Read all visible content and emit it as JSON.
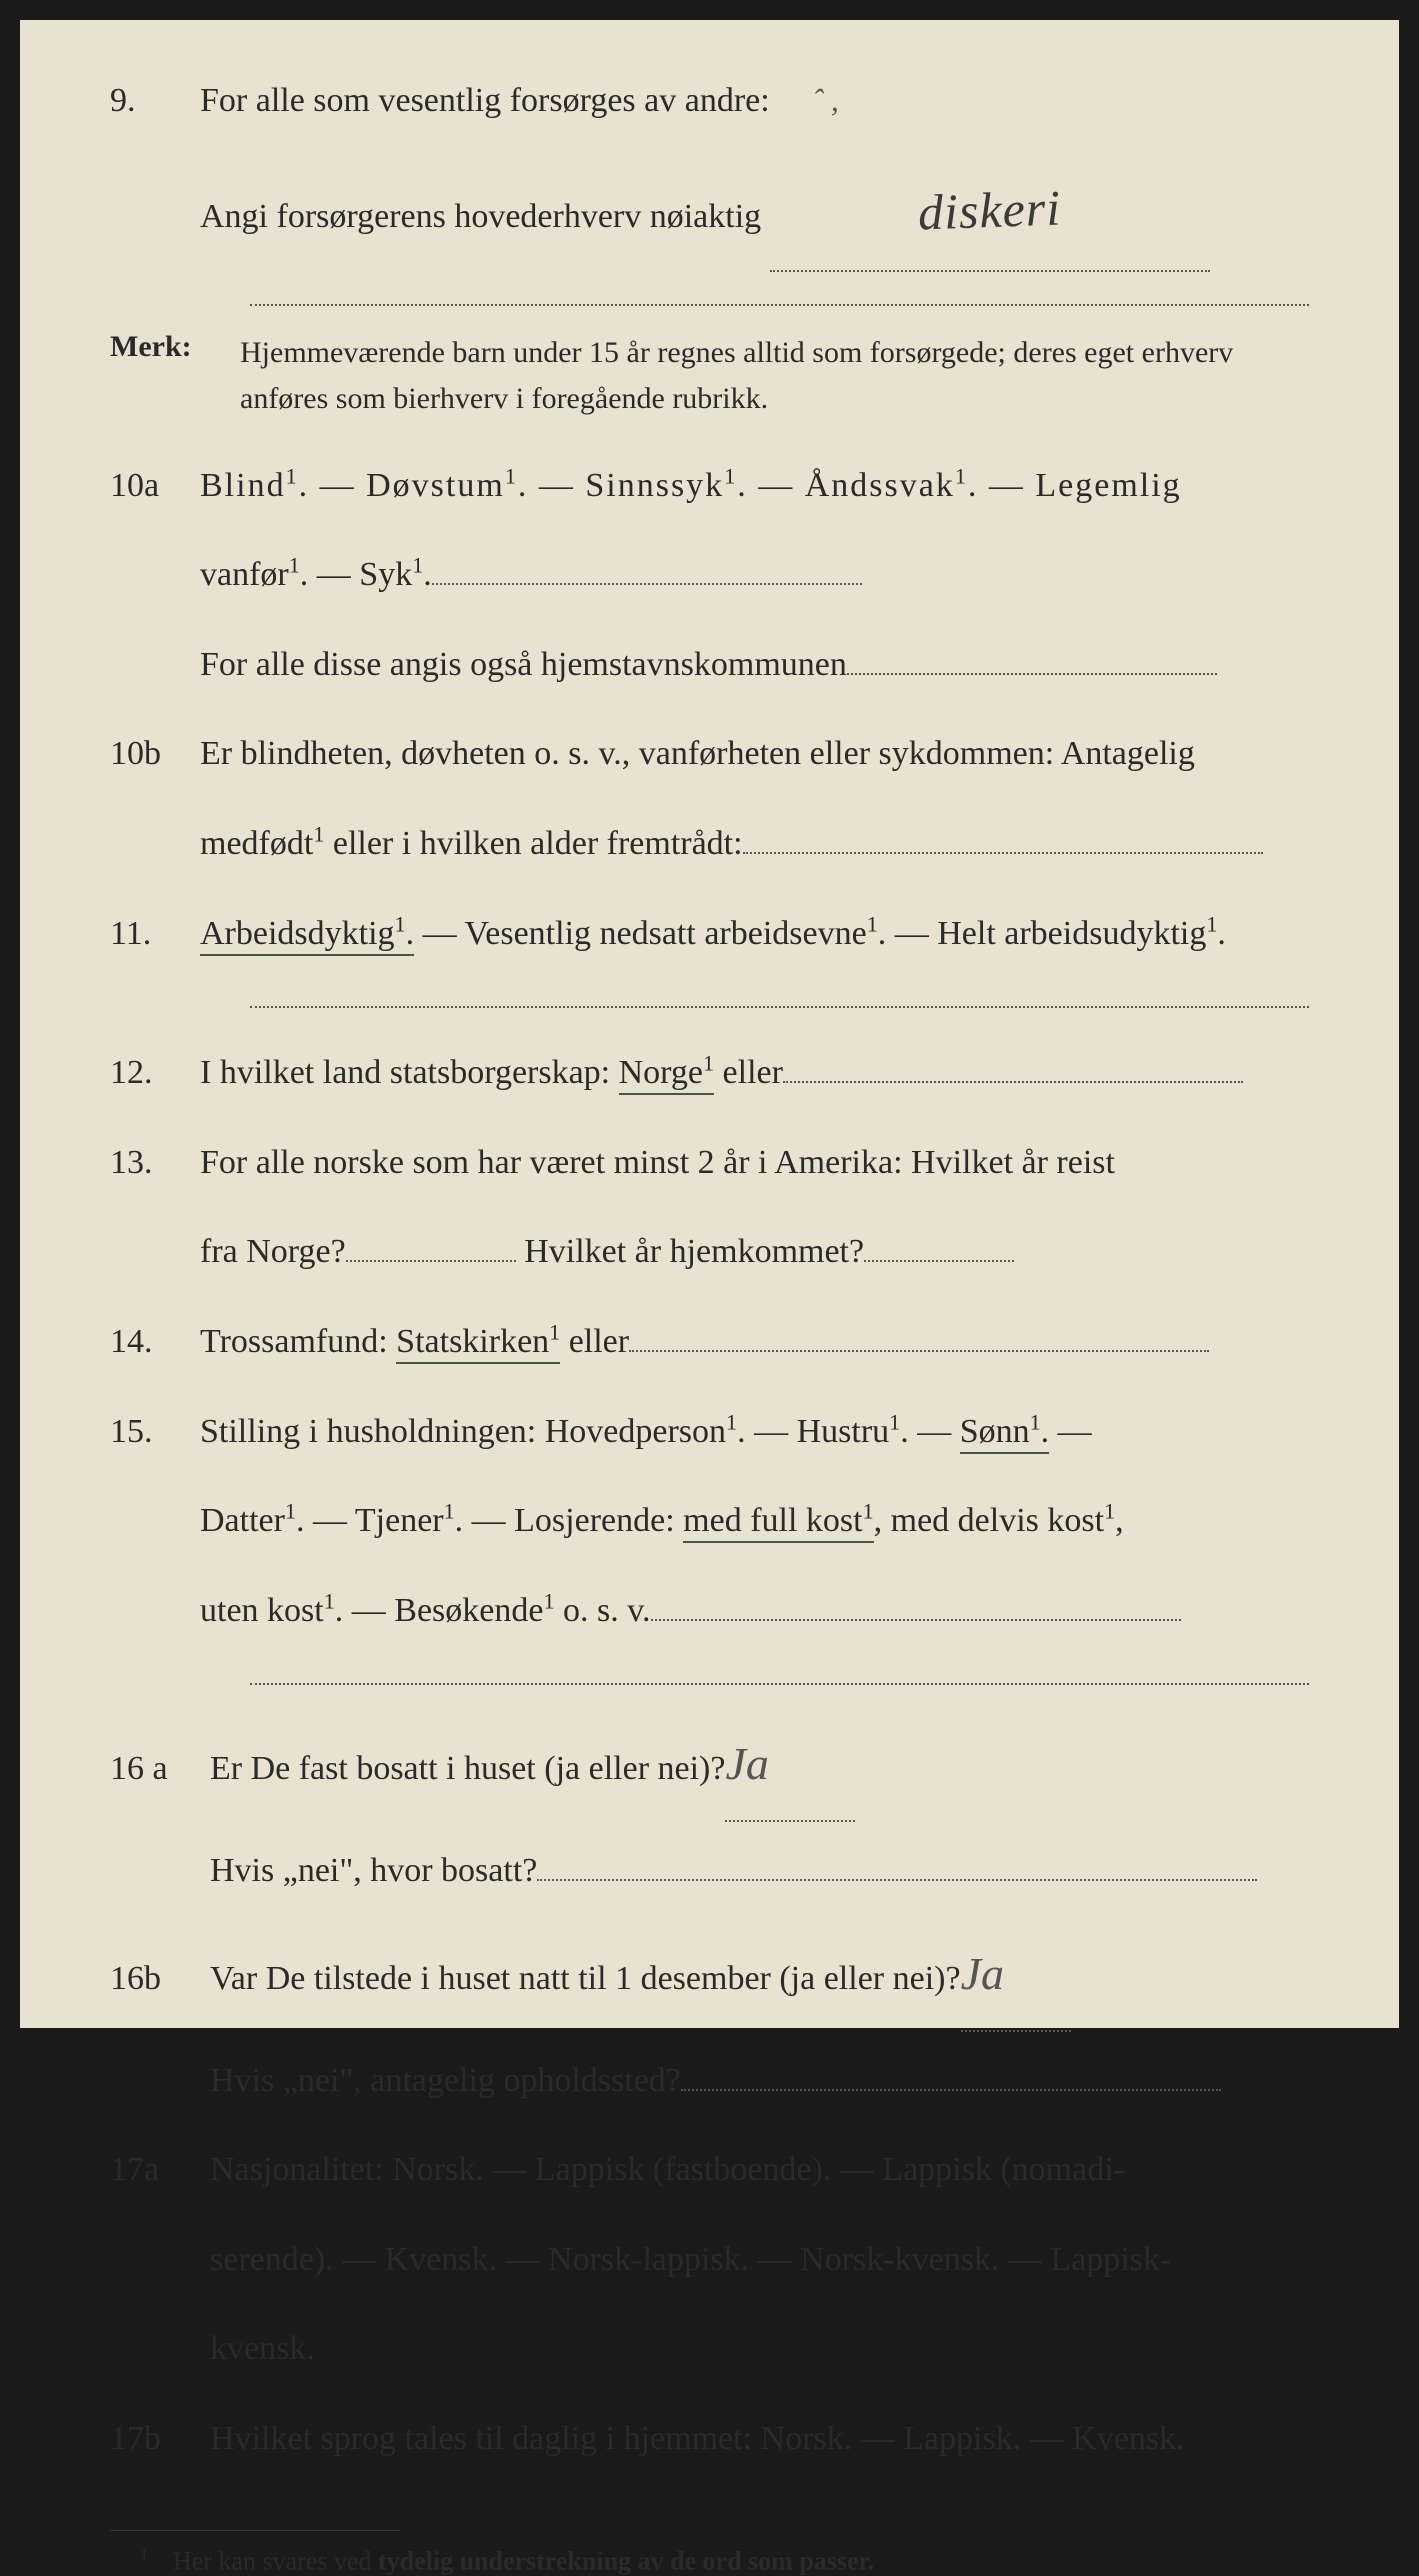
{
  "colors": {
    "page_bg": "#e8e2d0",
    "frame_bg": "#1a1a1a",
    "text": "#2a2a2a",
    "dotted": "#555555",
    "underline": "#4a5548",
    "hand": "#3a3a3a"
  },
  "typography": {
    "body_fontsize": 34,
    "merk_fontsize": 30,
    "footnote_fontsize": 26,
    "hand_fontsize": 50,
    "line_height": 2.4
  },
  "q9": {
    "num": "9.",
    "line1": "For alle som vesentlig forsørges av andre:",
    "line2a": "Angi forsørgerens hovederhverv nøiaktig",
    "hand": "diskeri",
    "accent": "ˆ ,"
  },
  "merk": {
    "label": "Merk:",
    "text": "Hjemmeværende barn under 15 år regnes alltid som forsørgede; deres eget erhverv anføres som bierhverv i foregående rubrikk."
  },
  "q10a": {
    "num": "10a",
    "opts": "Blind¹.   —   Døvstum¹.   —   Sinnssyk¹.   —   Åndssvak¹.   —   Legemlig",
    "line2a": "vanfør¹.  —  Syk¹.",
    "line3": "For alle disse angis også hjemstavnskommunen"
  },
  "q10b": {
    "num": "10b",
    "line1": "Er blindheten, døvheten o. s. v., vanførheten eller sykdommen: Antagelig",
    "line2": "medfødt¹ eller i hvilken alder fremtrådt:"
  },
  "q11": {
    "num": "11.",
    "opt1": "Arbeidsdyktig¹.",
    "rest": " — Vesentlig nedsatt arbeidsevne¹. — Helt arbeidsudyktig¹."
  },
  "q12": {
    "num": "12.",
    "pre": "I  hvilket  land  statsborgerskap:  ",
    "under": "Norge¹",
    "post": "  eller"
  },
  "q13": {
    "num": "13.",
    "line1": "For alle norske som har været minst 2 år i Amerika:   Hvilket år reist",
    "line2a": "fra Norge?",
    "line2b": " Hvilket år hjemkommet?"
  },
  "q14": {
    "num": "14.",
    "pre": "Trossamfund:   ",
    "under": "Statskirken¹",
    "post": "  eller"
  },
  "q15": {
    "num": "15.",
    "line1pre": "Stilling  i  husholdningen:   Hovedperson¹.   —   Hustru¹.   —   ",
    "sonn": "Sønn¹.",
    "line1post": "   —",
    "line2pre": "Datter¹.  —  Tjener¹.  —  Losjerende:  ",
    "medfull": "med  full  kost¹",
    "line2post": ",  med  delvis  kost¹,",
    "line3": "uten kost¹.  —  Besøkende¹ o. s. v."
  },
  "q16a": {
    "num": "16 a",
    "line1": "Er De fast bosatt i huset (ja eller nei)?",
    "hand": "Ja",
    "line2": "Hvis „nei\", hvor bosatt?"
  },
  "q16b": {
    "num": "16b",
    "line1": "Var De tilstede i huset natt til 1 desember (ja eller nei)?",
    "hand": "Ja",
    "line2": "Hvis „nei\", antagelig opholdssted?"
  },
  "q17a": {
    "num": "17a",
    "line1": "Nasjonalitet:  Norsk.  —  Lappisk (fastboende).  —  Lappisk (nomadi-",
    "line2": "serende).  —  Kvensk.  —  Norsk-lappisk.  —  Norsk-kvensk.  —  Lappisk-",
    "line3": "kvensk."
  },
  "q17b": {
    "num": "17b",
    "text": "Hvilket sprog tales til daglig i hjemmet:  Norsk.  —  Lappisk. — Kvensk."
  },
  "footnote": {
    "mark": "1",
    "pre": "Her kan svares ved ",
    "bold": "tydelig understrekning av de ord som passer."
  }
}
